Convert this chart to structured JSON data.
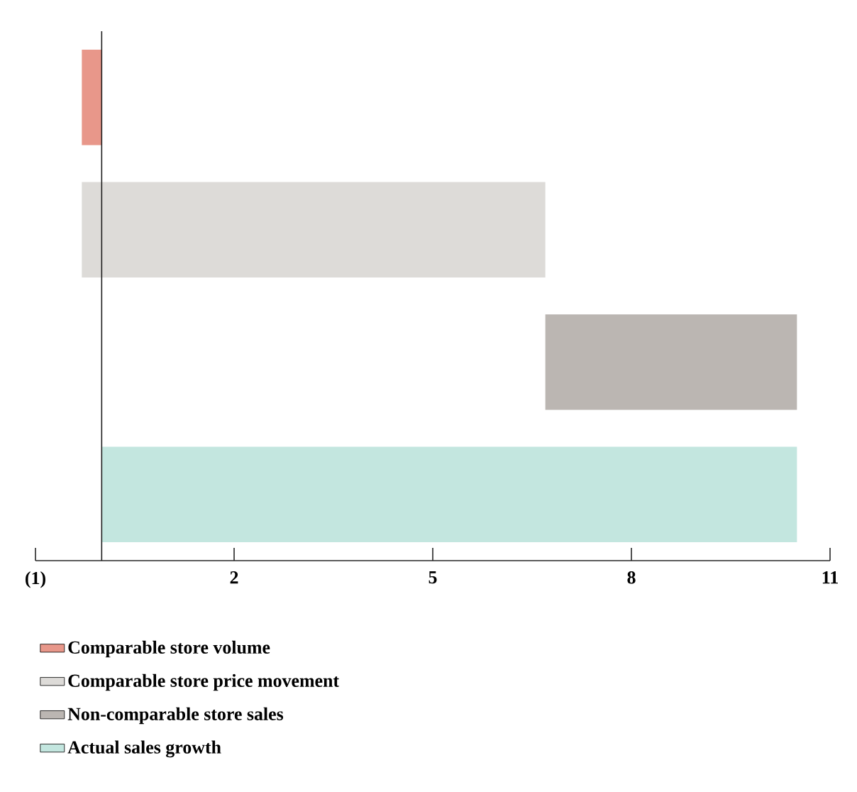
{
  "chart_data": {
    "type": "bar",
    "orientation": "horizontal",
    "categories": [
      null,
      null,
      null,
      null
    ],
    "series": [
      {
        "name": "Comparable store volume",
        "color": "#e8978a",
        "values": [
          -0.3,
          null,
          null,
          null
        ],
        "base": [
          0,
          null,
          null,
          null
        ]
      },
      {
        "name": "Comparable store price movement",
        "color": "#dddbd8",
        "values": [
          null,
          7.0,
          null,
          null
        ],
        "base": [
          null,
          -0.3,
          null,
          null
        ]
      },
      {
        "name": "Non-comparable store sales",
        "color": "#bbb6b2",
        "values": [
          null,
          null,
          3.8,
          null
        ],
        "base": [
          null,
          null,
          6.7,
          null
        ]
      },
      {
        "name": "Actual sales growth",
        "color": "#c3e6df",
        "values": [
          null,
          null,
          null,
          10.5
        ],
        "base": [
          null,
          null,
          null,
          0
        ]
      }
    ],
    "xlim": [
      -1,
      11
    ],
    "xticks": [
      {
        "value": -1,
        "label": "(1)"
      },
      2,
      5,
      8,
      11
    ],
    "ref_lines": [
      {
        "axis": "x",
        "value": 0,
        "color": "#222222"
      }
    ],
    "grid": false,
    "legend": "bottom"
  }
}
